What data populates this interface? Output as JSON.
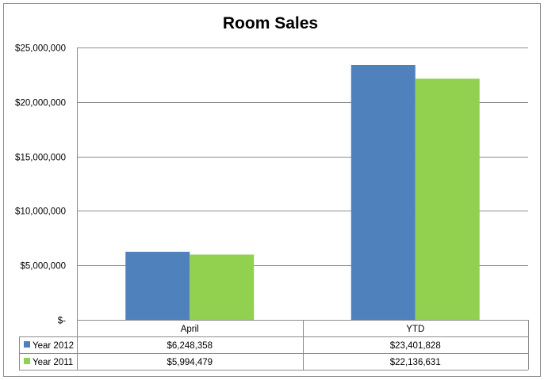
{
  "chart_data": {
    "type": "bar",
    "title": "Room Sales",
    "categories": [
      "April",
      "YTD"
    ],
    "series": [
      {
        "name": "Year 2012",
        "values": [
          6248358,
          23401828
        ],
        "labels": [
          "$6,248,358",
          "$23,401,828"
        ],
        "color": "#4f81bd"
      },
      {
        "name": "Year 2011",
        "values": [
          5994479,
          22136631
        ],
        "labels": [
          "$5,994,479",
          "$22,136,631"
        ],
        "color": "#92d050"
      }
    ],
    "ylim": [
      0,
      25000000
    ],
    "yticks": [
      {
        "value": 0,
        "label": "$-"
      },
      {
        "value": 5000000,
        "label": "$5,000,000"
      },
      {
        "value": 10000000,
        "label": "$10,000,000"
      },
      {
        "value": 15000000,
        "label": "$15,000,000"
      },
      {
        "value": 20000000,
        "label": "$20,000,000"
      },
      {
        "value": 25000000,
        "label": "$25,000,000"
      }
    ],
    "grid": true,
    "legend": "data-table",
    "xlabel": "",
    "ylabel": ""
  }
}
